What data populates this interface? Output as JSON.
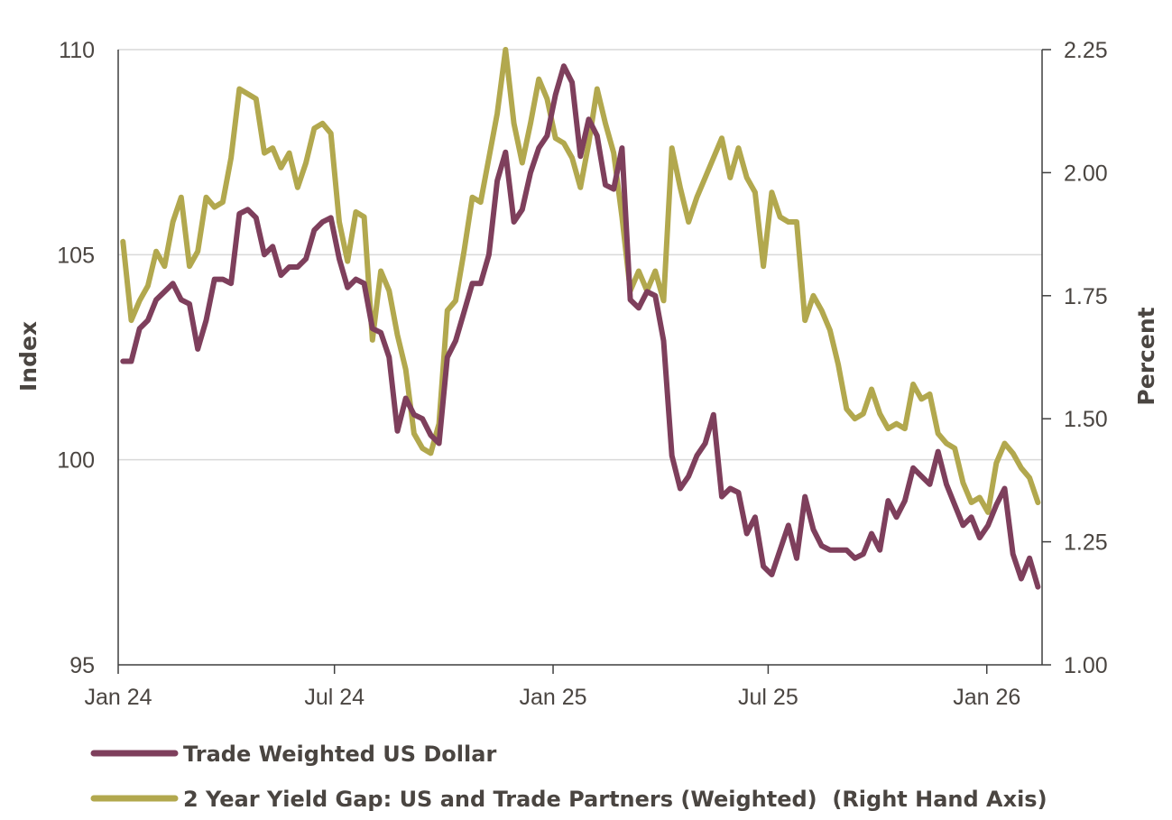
{
  "chart_data": {
    "type": "line",
    "title": "",
    "x": [
      "2024-01-05",
      "2024-01-12",
      "2024-01-19",
      "2024-01-26",
      "2024-02-02",
      "2024-02-09",
      "2024-02-16",
      "2024-02-23",
      "2024-03-01",
      "2024-03-08",
      "2024-03-15",
      "2024-03-22",
      "2024-03-29",
      "2024-04-05",
      "2024-04-12",
      "2024-04-19",
      "2024-04-26",
      "2024-05-03",
      "2024-05-10",
      "2024-05-17",
      "2024-05-24",
      "2024-05-31",
      "2024-06-07",
      "2024-06-14",
      "2024-06-21",
      "2024-06-28",
      "2024-07-05",
      "2024-07-12",
      "2024-07-19",
      "2024-07-26",
      "2024-08-02",
      "2024-08-09",
      "2024-08-16",
      "2024-08-23",
      "2024-08-30",
      "2024-09-06",
      "2024-09-13",
      "2024-09-20",
      "2024-09-27",
      "2024-10-04",
      "2024-10-11",
      "2024-10-18",
      "2024-10-25",
      "2024-11-01",
      "2024-11-08",
      "2024-11-15",
      "2024-11-22",
      "2024-11-29",
      "2024-12-06",
      "2024-12-13",
      "2024-12-20",
      "2024-12-27",
      "2025-01-03",
      "2025-01-10",
      "2025-01-17",
      "2025-01-24",
      "2025-01-31",
      "2025-02-07",
      "2025-02-14",
      "2025-02-21",
      "2025-02-28",
      "2025-03-07",
      "2025-03-14",
      "2025-03-21",
      "2025-03-28",
      "2025-04-04",
      "2025-04-11",
      "2025-04-18",
      "2025-04-25",
      "2025-05-02",
      "2025-05-09",
      "2025-05-16",
      "2025-05-23",
      "2025-05-30",
      "2025-06-06",
      "2025-06-13",
      "2025-06-20",
      "2025-06-27",
      "2025-07-04",
      "2025-07-11",
      "2025-07-18",
      "2025-07-25",
      "2025-08-01",
      "2025-08-08",
      "2025-08-15",
      "2025-08-22",
      "2025-08-29",
      "2025-09-05",
      "2025-09-12",
      "2025-09-19",
      "2025-09-26",
      "2025-10-03",
      "2025-10-10",
      "2025-10-17",
      "2025-10-24",
      "2025-10-31",
      "2025-11-07",
      "2025-11-14",
      "2025-11-21",
      "2025-11-28",
      "2025-12-05",
      "2025-12-12",
      "2025-12-19",
      "2025-12-26",
      "2026-01-02",
      "2026-01-09",
      "2026-01-16",
      "2026-01-23",
      "2026-01-30",
      "2026-02-06",
      "2026-02-13"
    ],
    "x_range": [
      "2024-01-01",
      "2026-02-15"
    ],
    "x_ticks": [
      {
        "date": "2024-01-01",
        "label": "Jan 24"
      },
      {
        "date": "2024-07-01",
        "label": "Jul 24"
      },
      {
        "date": "2025-01-01",
        "label": "Jan 25"
      },
      {
        "date": "2025-07-01",
        "label": "Jul 25"
      },
      {
        "date": "2026-01-01",
        "label": "Jan 26"
      }
    ],
    "y_left": {
      "label": "Index",
      "range": [
        95,
        110
      ],
      "ticks": [
        {
          "value": 95,
          "label": "95"
        },
        {
          "value": 100,
          "label": "100"
        },
        {
          "value": 105,
          "label": "105"
        },
        {
          "value": 110,
          "label": "110"
        }
      ]
    },
    "y_right": {
      "label": "Percent",
      "range": [
        1.0,
        2.25
      ],
      "ticks": [
        {
          "value": 1.0,
          "label": "1.00"
        },
        {
          "value": 1.25,
          "label": "1.25"
        },
        {
          "value": 1.5,
          "label": "1.50"
        },
        {
          "value": 1.75,
          "label": "1.75"
        },
        {
          "value": 2.0,
          "label": "2.00"
        },
        {
          "value": 2.25,
          "label": "2.25"
        }
      ]
    },
    "grid": true,
    "legend_position": "bottom-left",
    "series": [
      {
        "name": "Trade Weighted US Dollar",
        "axis": "left",
        "color": "#7e3f5c",
        "values": [
          102.4,
          102.4,
          103.2,
          103.4,
          103.9,
          104.1,
          104.3,
          103.9,
          103.8,
          102.7,
          103.4,
          104.4,
          104.4,
          104.3,
          106.0,
          106.1,
          105.9,
          105.0,
          105.2,
          104.5,
          104.7,
          104.7,
          104.9,
          105.6,
          105.8,
          105.9,
          104.9,
          104.2,
          104.4,
          104.3,
          103.2,
          103.1,
          102.5,
          100.7,
          101.5,
          101.1,
          101.0,
          100.6,
          100.4,
          102.5,
          102.9,
          103.6,
          104.3,
          104.3,
          105.0,
          106.8,
          107.5,
          105.8,
          106.1,
          107.0,
          107.6,
          107.9,
          108.9,
          109.6,
          109.2,
          107.4,
          108.3,
          107.9,
          106.7,
          106.6,
          107.6,
          103.9,
          103.7,
          104.1,
          104.0,
          102.9,
          100.1,
          99.3,
          99.6,
          100.1,
          100.4,
          101.1,
          99.1,
          99.3,
          99.2,
          98.2,
          98.6,
          97.4,
          97.2,
          97.8,
          98.4,
          97.6,
          99.1,
          98.3,
          97.9,
          97.8,
          97.8,
          97.8,
          97.6,
          97.7,
          98.2,
          97.8,
          99.0,
          98.6,
          99.0,
          99.8,
          99.6,
          99.4,
          100.2,
          99.4,
          98.9,
          98.4,
          98.6,
          98.1,
          98.4,
          98.9,
          99.3,
          97.7,
          97.1,
          97.6,
          96.9
        ]
      },
      {
        "name": "2 Year Yield Gap: US and Trade Partners (Weighted)  (Right Hand Axis)",
        "axis": "right",
        "color": "#b2a84e",
        "values": [
          1.86,
          1.7,
          1.74,
          1.77,
          1.84,
          1.81,
          1.9,
          1.95,
          1.81,
          1.84,
          1.95,
          1.93,
          1.94,
          2.03,
          2.17,
          2.16,
          2.15,
          2.04,
          2.05,
          2.01,
          2.04,
          1.97,
          2.02,
          2.09,
          2.1,
          2.08,
          1.9,
          1.82,
          1.92,
          1.91,
          1.66,
          1.8,
          1.76,
          1.67,
          1.6,
          1.47,
          1.44,
          1.43,
          1.49,
          1.72,
          1.74,
          1.84,
          1.95,
          1.94,
          2.03,
          2.12,
          2.25,
          2.1,
          2.02,
          2.1,
          2.19,
          2.15,
          2.07,
          2.06,
          2.03,
          1.97,
          2.06,
          2.17,
          2.1,
          2.04,
          1.91,
          1.76,
          1.8,
          1.76,
          1.8,
          1.74,
          2.05,
          1.97,
          1.9,
          1.95,
          1.99,
          2.03,
          2.07,
          1.99,
          2.05,
          1.99,
          1.96,
          1.81,
          1.96,
          1.91,
          1.9,
          1.9,
          1.7,
          1.75,
          1.72,
          1.68,
          1.61,
          1.52,
          1.5,
          1.51,
          1.56,
          1.51,
          1.48,
          1.49,
          1.48,
          1.57,
          1.54,
          1.55,
          1.47,
          1.45,
          1.44,
          1.37,
          1.33,
          1.34,
          1.31,
          1.41,
          1.45,
          1.43,
          1.4,
          1.38,
          1.33
        ]
      }
    ]
  }
}
